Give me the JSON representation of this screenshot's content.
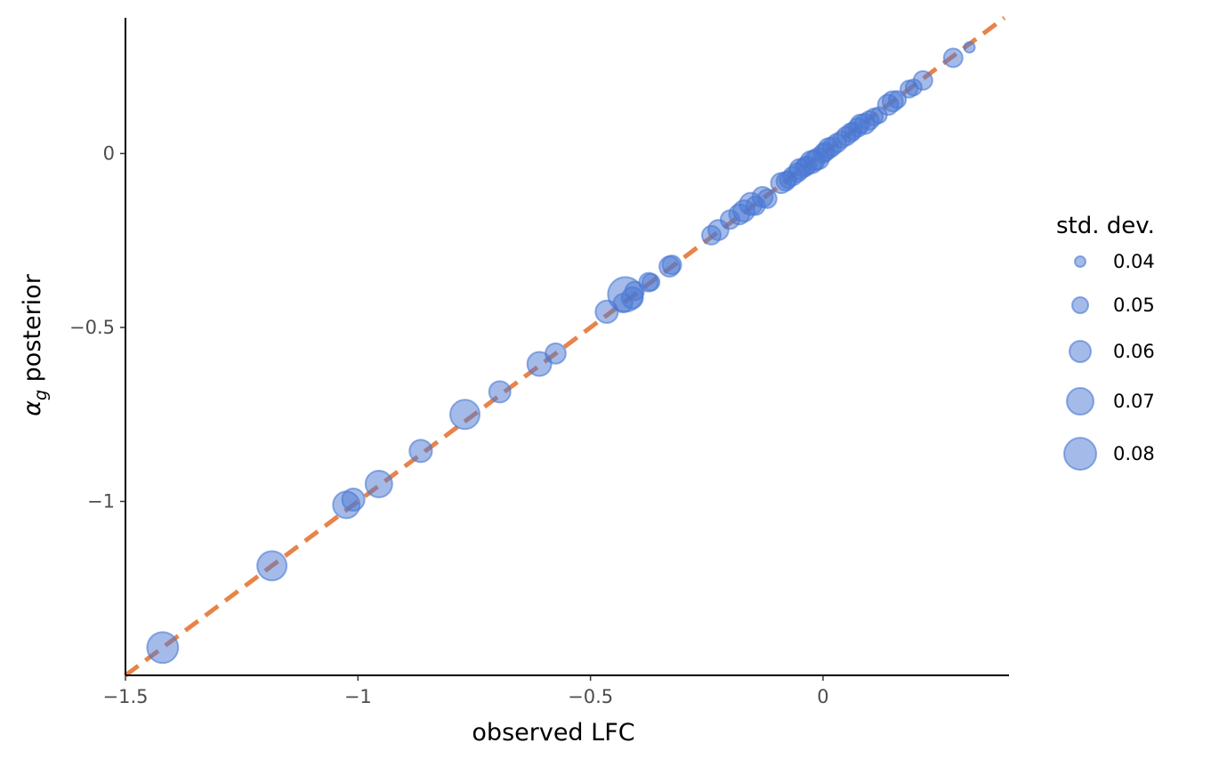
{
  "chart_data": {
    "type": "scatter",
    "title": "",
    "xlabel": "observed LFC",
    "ylabel_main": "α",
    "ylabel_sub": "g",
    "ylabel_rest": " posterior",
    "xlim": [
      -1.5,
      0.4
    ],
    "ylim": [
      -1.5,
      0.39
    ],
    "x_ticks": [
      -1.5,
      -1,
      -0.5,
      0
    ],
    "x_tick_labels": [
      "−1.5",
      "−1",
      "−0.5",
      "0"
    ],
    "y_ticks": [
      -1,
      -0.5,
      0
    ],
    "y_tick_labels": [
      "−1",
      "−0.5",
      "0"
    ],
    "grid": false,
    "point_color": "#4a78d4",
    "line_color": "#e8834a",
    "reference_line": {
      "style": "dashed",
      "slope": 1,
      "intercept": 0
    },
    "legend": {
      "title": "std. dev.",
      "placement": "right",
      "entries": [
        {
          "label": "0.04",
          "value": 0.04
        },
        {
          "label": "0.05",
          "value": 0.05
        },
        {
          "label": "0.06",
          "value": 0.06
        },
        {
          "label": "0.07",
          "value": 0.07
        },
        {
          "label": "0.08",
          "value": 0.08
        }
      ]
    },
    "points": [
      {
        "x": -1.42,
        "y": -1.42,
        "sd": 0.078
      },
      {
        "x": -1.185,
        "y": -1.185,
        "sd": 0.075
      },
      {
        "x": -1.025,
        "y": -1.01,
        "sd": 0.07
      },
      {
        "x": -1.01,
        "y": -0.995,
        "sd": 0.062
      },
      {
        "x": -0.955,
        "y": -0.95,
        "sd": 0.07
      },
      {
        "x": -0.865,
        "y": -0.855,
        "sd": 0.062
      },
      {
        "x": -0.77,
        "y": -0.75,
        "sd": 0.075
      },
      {
        "x": -0.695,
        "y": -0.685,
        "sd": 0.06
      },
      {
        "x": -0.61,
        "y": -0.605,
        "sd": 0.065
      },
      {
        "x": -0.575,
        "y": -0.575,
        "sd": 0.058
      },
      {
        "x": -0.465,
        "y": -0.455,
        "sd": 0.062
      },
      {
        "x": -0.43,
        "y": -0.43,
        "sd": 0.055
      },
      {
        "x": -0.425,
        "y": -0.405,
        "sd": 0.085
      },
      {
        "x": -0.41,
        "y": -0.415,
        "sd": 0.06
      },
      {
        "x": -0.405,
        "y": -0.395,
        "sd": 0.055
      },
      {
        "x": -0.375,
        "y": -0.37,
        "sd": 0.055
      },
      {
        "x": -0.37,
        "y": -0.37,
        "sd": 0.052
      },
      {
        "x": -0.33,
        "y": -0.325,
        "sd": 0.058
      },
      {
        "x": -0.325,
        "y": -0.32,
        "sd": 0.055
      },
      {
        "x": -0.24,
        "y": -0.235,
        "sd": 0.055
      },
      {
        "x": -0.225,
        "y": -0.22,
        "sd": 0.058
      },
      {
        "x": -0.2,
        "y": -0.19,
        "sd": 0.055
      },
      {
        "x": -0.18,
        "y": -0.175,
        "sd": 0.058
      },
      {
        "x": -0.17,
        "y": -0.165,
        "sd": 0.06
      },
      {
        "x": -0.155,
        "y": -0.145,
        "sd": 0.062
      },
      {
        "x": -0.145,
        "y": -0.15,
        "sd": 0.055
      },
      {
        "x": -0.13,
        "y": -0.125,
        "sd": 0.058
      },
      {
        "x": -0.12,
        "y": -0.13,
        "sd": 0.055
      },
      {
        "x": -0.09,
        "y": -0.085,
        "sd": 0.058
      },
      {
        "x": -0.08,
        "y": -0.08,
        "sd": 0.055
      },
      {
        "x": -0.075,
        "y": -0.075,
        "sd": 0.052
      },
      {
        "x": -0.065,
        "y": -0.065,
        "sd": 0.055
      },
      {
        "x": -0.055,
        "y": -0.055,
        "sd": 0.055
      },
      {
        "x": -0.05,
        "y": -0.045,
        "sd": 0.058
      },
      {
        "x": -0.04,
        "y": -0.04,
        "sd": 0.055
      },
      {
        "x": -0.035,
        "y": -0.035,
        "sd": 0.055
      },
      {
        "x": -0.025,
        "y": -0.025,
        "sd": 0.062
      },
      {
        "x": -0.018,
        "y": -0.02,
        "sd": 0.058
      },
      {
        "x": -0.01,
        "y": -0.015,
        "sd": 0.06
      },
      {
        "x": 0.0,
        "y": 0.0,
        "sd": 0.055
      },
      {
        "x": 0.005,
        "y": 0.005,
        "sd": 0.055
      },
      {
        "x": 0.012,
        "y": 0.015,
        "sd": 0.058
      },
      {
        "x": 0.02,
        "y": 0.02,
        "sd": 0.055
      },
      {
        "x": 0.03,
        "y": 0.03,
        "sd": 0.055
      },
      {
        "x": 0.04,
        "y": 0.04,
        "sd": 0.052
      },
      {
        "x": 0.05,
        "y": 0.05,
        "sd": 0.055
      },
      {
        "x": 0.06,
        "y": 0.06,
        "sd": 0.055
      },
      {
        "x": 0.065,
        "y": 0.065,
        "sd": 0.052
      },
      {
        "x": 0.075,
        "y": 0.075,
        "sd": 0.055
      },
      {
        "x": 0.08,
        "y": 0.085,
        "sd": 0.055
      },
      {
        "x": 0.09,
        "y": 0.085,
        "sd": 0.058
      },
      {
        "x": 0.1,
        "y": 0.095,
        "sd": 0.055
      },
      {
        "x": 0.11,
        "y": 0.105,
        "sd": 0.052
      },
      {
        "x": 0.12,
        "y": 0.11,
        "sd": 0.05
      },
      {
        "x": 0.14,
        "y": 0.14,
        "sd": 0.058
      },
      {
        "x": 0.15,
        "y": 0.15,
        "sd": 0.058
      },
      {
        "x": 0.16,
        "y": 0.155,
        "sd": 0.052
      },
      {
        "x": 0.185,
        "y": 0.185,
        "sd": 0.052
      },
      {
        "x": 0.195,
        "y": 0.19,
        "sd": 0.05
      },
      {
        "x": 0.215,
        "y": 0.21,
        "sd": 0.055
      },
      {
        "x": 0.28,
        "y": 0.275,
        "sd": 0.055
      },
      {
        "x": 0.315,
        "y": 0.305,
        "sd": 0.04
      }
    ]
  }
}
